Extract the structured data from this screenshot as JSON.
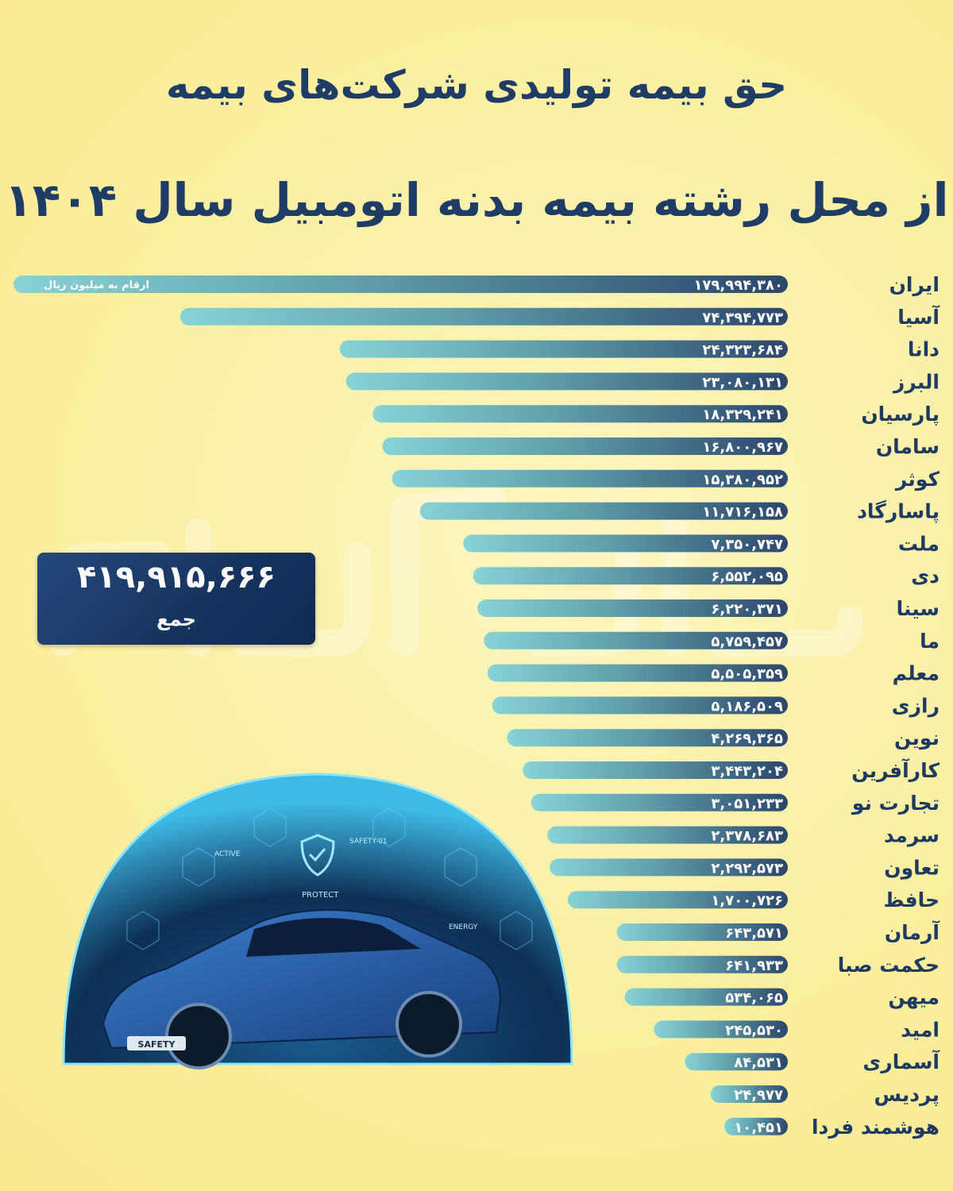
{
  "title_line1": "حق بیمه تولیدی شرکت‌های بیمه",
  "title_line2": "از محل رشته بیمه بدنه اتومبیل سال ۱۴۰۴",
  "unit_note": "ارقام به میلیون ریال",
  "total": {
    "value": "۴۱۹,۹۱۵,۶۶۶",
    "label": "جمع"
  },
  "colors": {
    "bar_start": "#87d3d6",
    "bar_end": "#2c466c",
    "text": "#1e3a63",
    "background": "#fbf0a8"
  },
  "illustration": {
    "badge_text": "SAFETY",
    "labels": [
      "ACTIVE",
      "PROTECT",
      "SAFETY-01",
      "ENERGY"
    ]
  },
  "chart_data": {
    "type": "bar",
    "orientation": "horizontal",
    "categories": [
      "ایران",
      "آسیا",
      "دانا",
      "البرز",
      "پارسیان",
      "سامان",
      "کوثر",
      "پاسارگاد",
      "ملت",
      "دی",
      "سینا",
      "ما",
      "معلم",
      "رازی",
      "نوین",
      "کارآفرین",
      "تجارت نو",
      "سرمد",
      "تعاون",
      "حافظ",
      "آرمان",
      "حکمت صبا",
      "میهن",
      "امید",
      "آسماری",
      "پردیس",
      "هوشمند فردا"
    ],
    "value_labels": [
      "۱۷۹,۹۹۴,۳۸۰",
      "۷۴,۳۹۴,۷۷۳",
      "۲۴,۳۲۳,۶۸۴",
      "۲۳,۰۸۰,۱۳۱",
      "۱۸,۳۲۹,۲۴۱",
      "۱۶,۸۰۰,۹۶۷",
      "۱۵,۳۸۰,۹۵۲",
      "۱۱,۷۱۶,۱۵۸",
      "۷,۳۵۰,۷۴۷",
      "۶,۵۵۲,۰۹۵",
      "۶,۲۲۰,۳۷۱",
      "۵,۷۵۹,۴۵۷",
      "۵,۵۰۵,۳۵۹",
      "۵,۱۸۶,۵۰۹",
      "۴,۲۶۹,۳۶۵",
      "۳,۴۴۳,۲۰۴",
      "۳,۰۵۱,۲۳۳",
      "۲,۳۷۸,۶۸۳",
      "۲,۲۹۲,۵۷۳",
      "۱,۷۰۰,۷۲۶",
      "۶۴۳,۵۷۱",
      "۶۴۱,۹۳۳",
      "۵۳۴,۰۶۵",
      "۲۴۵,۵۳۰",
      "۸۴,۵۳۱",
      "۲۴,۹۷۷",
      "۱۰,۴۵۱"
    ],
    "values": [
      179994380,
      74394773,
      24323684,
      23080131,
      18329241,
      16800967,
      15380952,
      11716158,
      7350747,
      6552095,
      6220371,
      5759457,
      5505359,
      5186509,
      4269365,
      3443204,
      3051233,
      2378683,
      2292573,
      1700726,
      643571,
      641933,
      534065,
      245530,
      84531,
      24977,
      10451
    ],
    "ylabel": "ارقام به میلیون ریال",
    "grid": false,
    "legend": "none"
  }
}
